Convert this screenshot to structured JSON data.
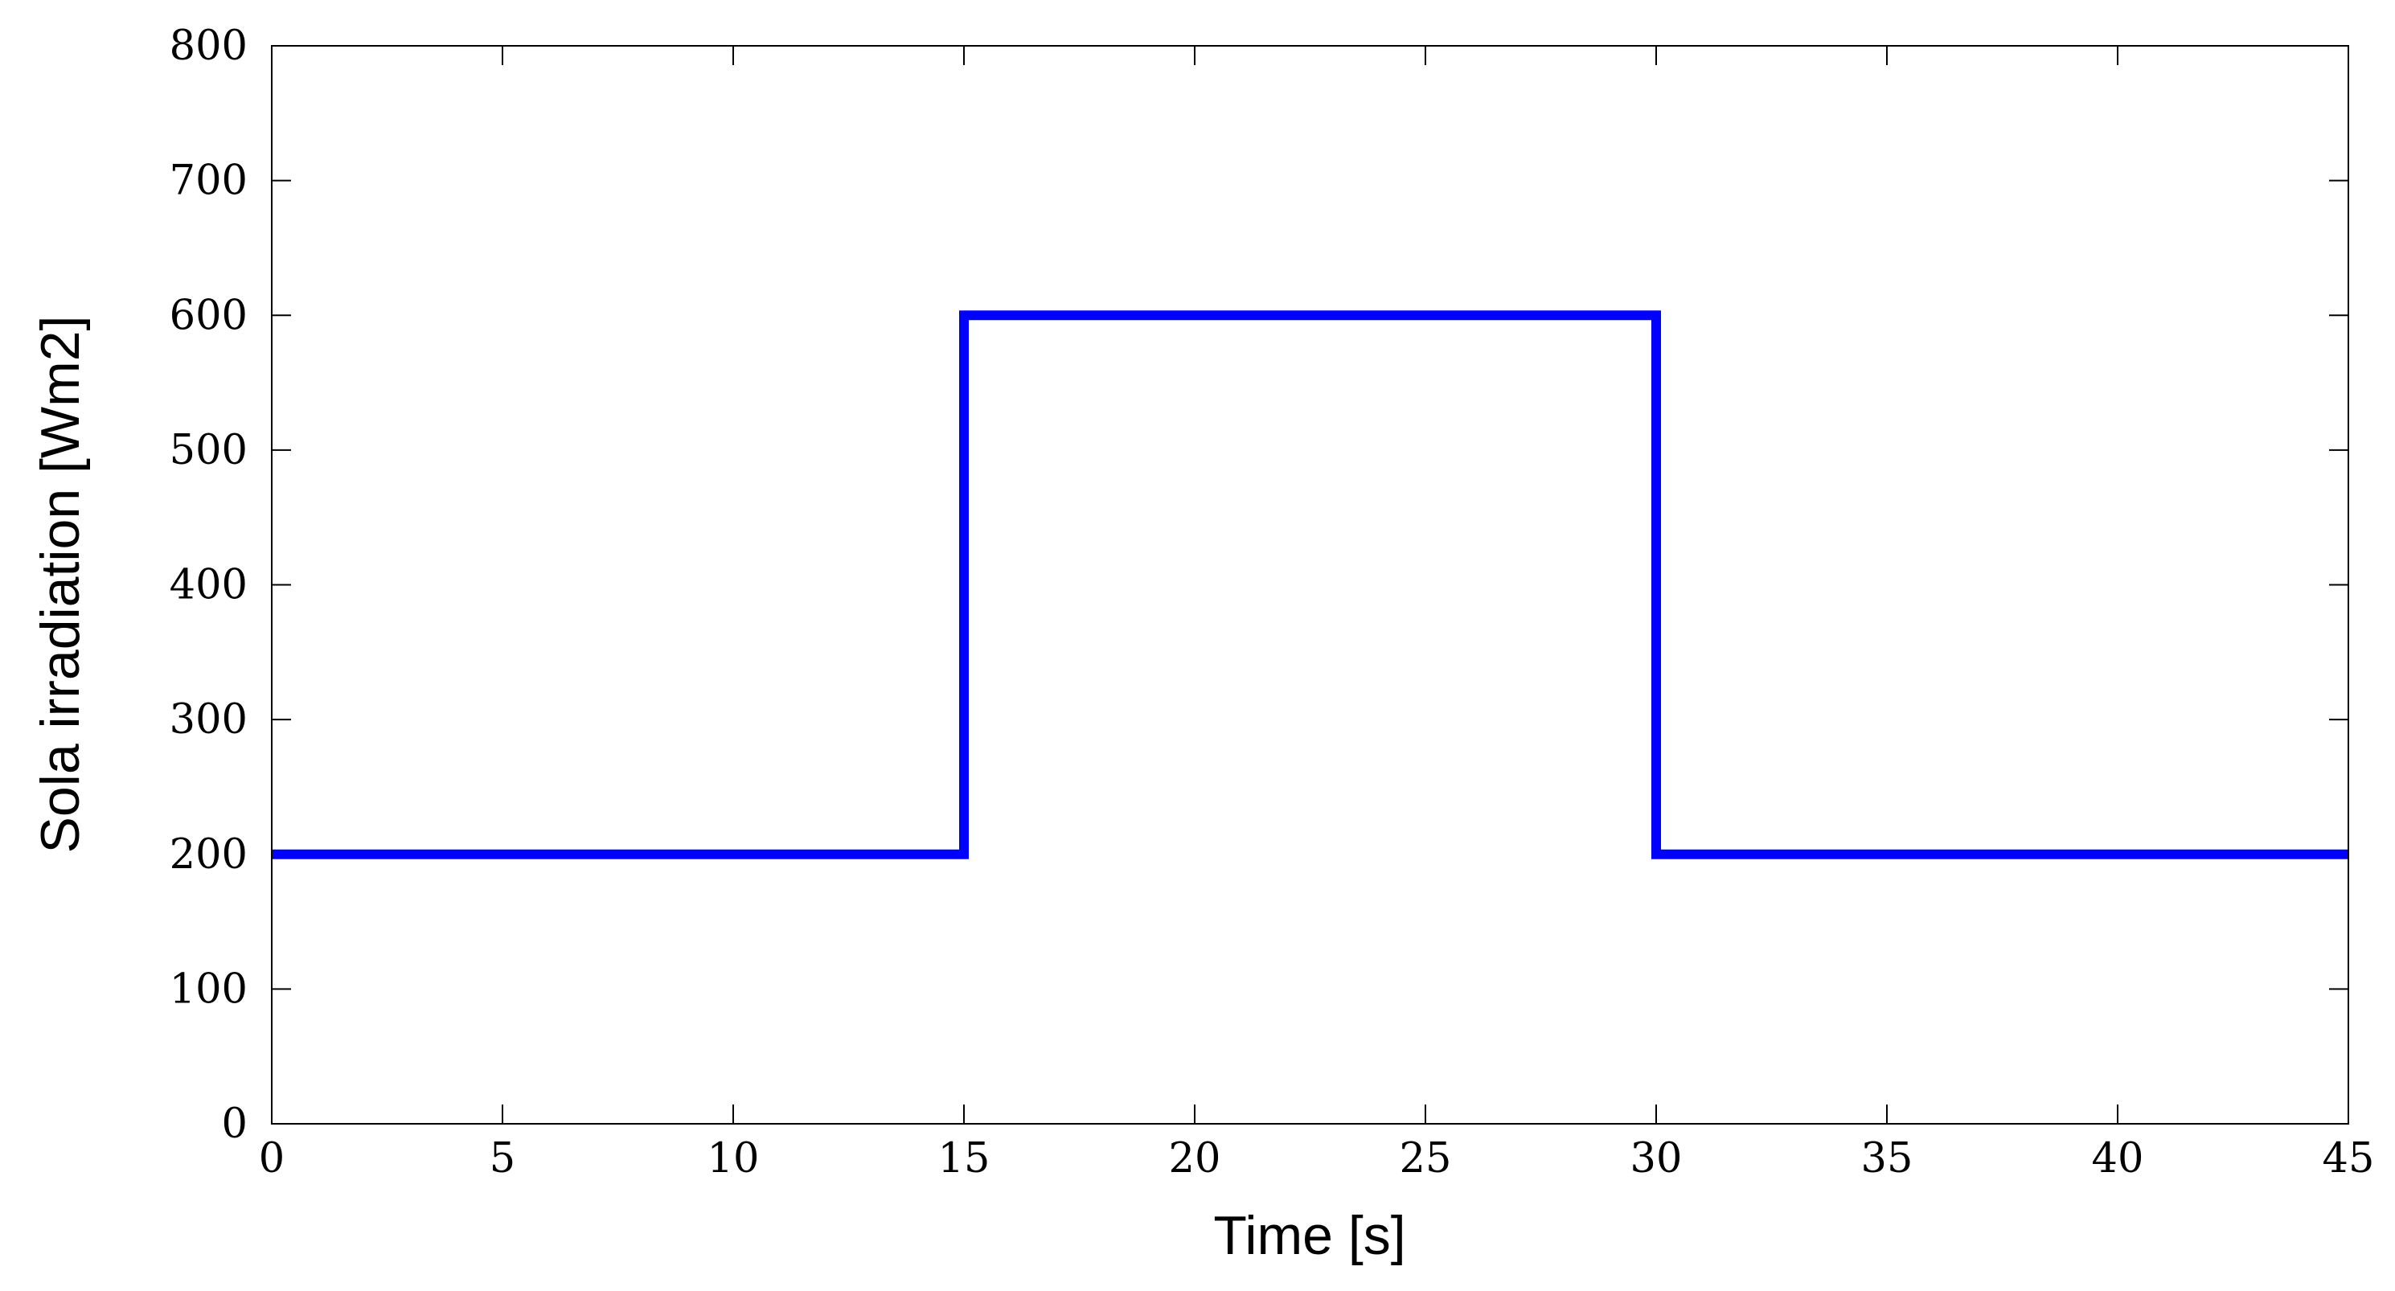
{
  "chart_data": {
    "type": "line",
    "xlabel": "Time [s]",
    "ylabel": "Sola irradiation [Wm2]",
    "xlim": [
      0,
      45
    ],
    "ylim": [
      0,
      800
    ],
    "xticks": [
      0,
      5,
      10,
      15,
      20,
      25,
      30,
      35,
      40,
      45
    ],
    "yticks": [
      0,
      100,
      200,
      300,
      400,
      500,
      600,
      700,
      800
    ],
    "grid": false,
    "series": [
      {
        "color": "#0000ff",
        "x": [
          0,
          15,
          15,
          30,
          30,
          45
        ],
        "y": [
          200,
          200,
          600,
          600,
          200,
          200
        ]
      }
    ]
  }
}
